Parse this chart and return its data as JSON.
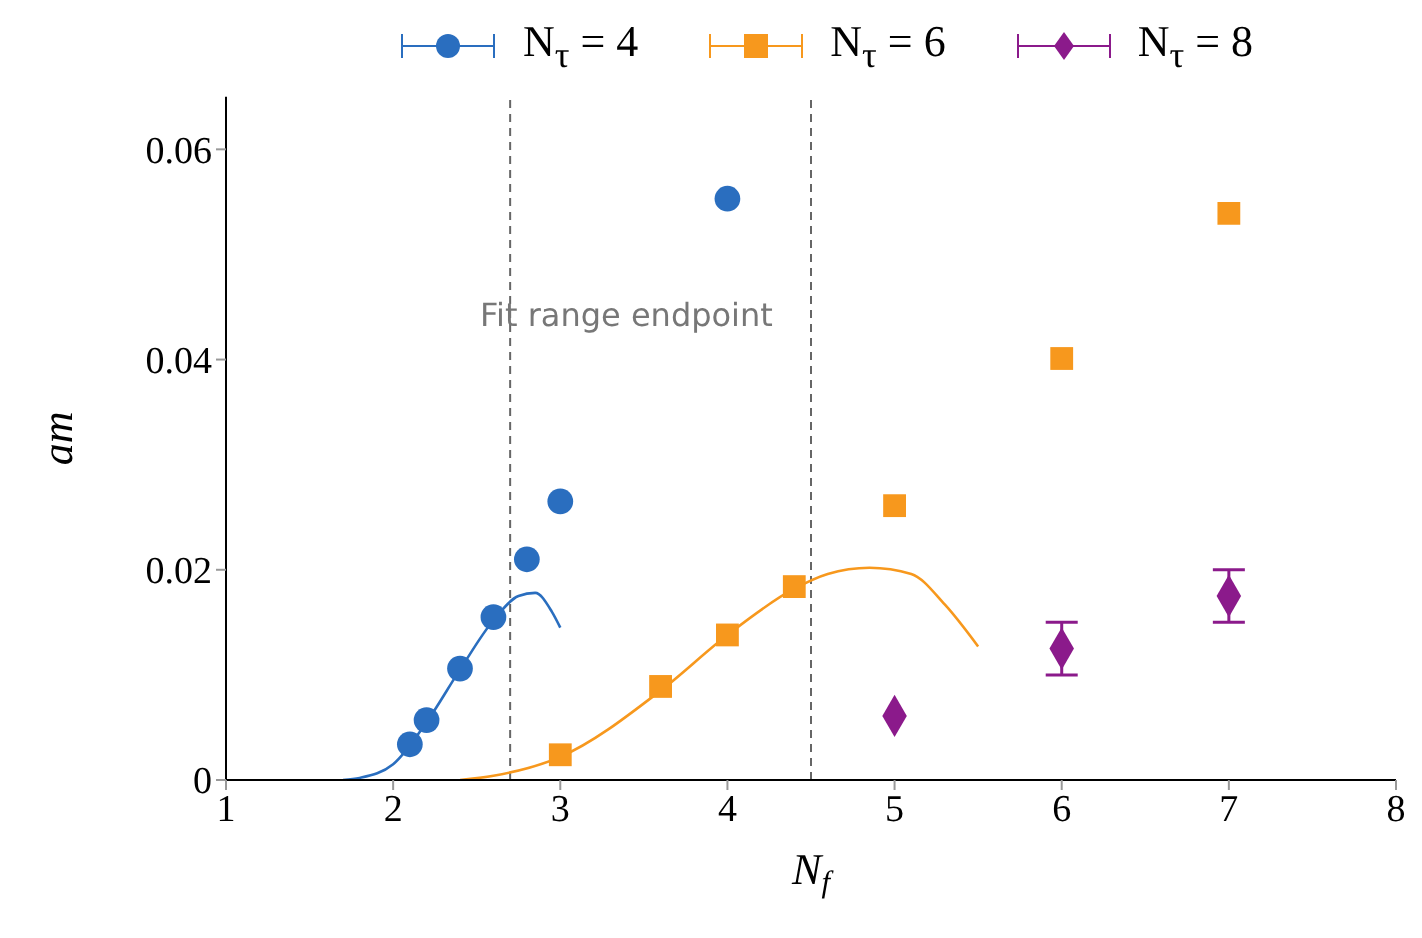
{
  "chart_data": {
    "type": "scatter",
    "xlabel": "N$_{f}$",
    "ylabel": "am",
    "xlim": [
      1,
      8
    ],
    "xticks": [
      1,
      2,
      3,
      4,
      5,
      6,
      7,
      8
    ],
    "ylim": [
      0,
      0.065
    ],
    "yticks": [
      0,
      0.02,
      0.04,
      0.06
    ],
    "grid": false,
    "legend": "top",
    "series": [
      {
        "name": "N$_{τ}$ = 4",
        "color": "#2a6ebf",
        "marker": "circle",
        "x": [
          2.1,
          2.2,
          2.4,
          2.6,
          2.8,
          3.0,
          4.0
        ],
        "values": [
          0.0034,
          0.0057,
          0.0106,
          0.0155,
          0.021,
          0.0265,
          0.0553
        ]
      },
      {
        "name": "N$_{τ}$ = 6",
        "color": "#f7981d",
        "marker": "square",
        "x": [
          3.0,
          3.6,
          4.0,
          4.4,
          5.0,
          6.0,
          7.0
        ],
        "values": [
          0.0024,
          0.0089,
          0.0138,
          0.0184,
          0.0261,
          0.0401,
          0.0539
        ]
      },
      {
        "name": "N$_{τ}$ = 8",
        "color": "#8b1a8b",
        "marker": "diamond",
        "x": [
          5,
          6,
          7
        ],
        "values": [
          0.0061,
          0.0125,
          0.0175
        ],
        "errors": [
          null,
          0.0025,
          0.0025
        ]
      },
      {
        "type": "line",
        "color": "#2a6ebf",
        "marker": "none",
        "x": [
          1.7,
          1.8,
          2.0,
          2.2,
          2.4,
          2.6,
          2.75,
          2.85,
          2.95,
          3.0
        ],
        "values": [
          0,
          0.0002,
          0.0015,
          0.0055,
          0.0105,
          0.0152,
          0.0175,
          0.0178,
          0.016,
          0.0145
        ]
      },
      {
        "type": "line",
        "color": "#f7981d",
        "marker": "none",
        "x": [
          2.4,
          2.6,
          3.0,
          3.6,
          4.0,
          4.4,
          4.6,
          4.85,
          5.1,
          5.3,
          5.5
        ],
        "values": [
          0,
          0.0004,
          0.0022,
          0.0085,
          0.0138,
          0.0182,
          0.0196,
          0.0202,
          0.0196,
          0.0167,
          0.0127
        ]
      }
    ],
    "ref_lines": [
      {
        "axis": "x",
        "value": 2.7,
        "color": "#666666",
        "line_style": "dashed"
      },
      {
        "axis": "x",
        "value": 4.5,
        "color": "#666666",
        "line_style": "dashed"
      }
    ],
    "annotations": [
      "Fit range endpoint"
    ]
  }
}
